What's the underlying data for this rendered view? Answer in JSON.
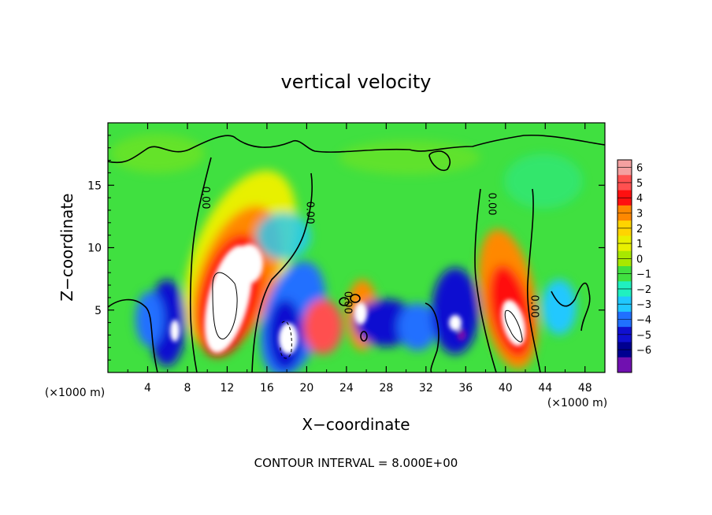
{
  "chart_data": {
    "type": "heatmap",
    "title": "vertical velocity",
    "xlabel": "X−coordinate",
    "ylabel": "Z−coordinate",
    "x_unit_left": "(×1000 m)",
    "x_unit_right": "(×1000 m)",
    "footer": "CONTOUR INTERVAL = 8.000E+00",
    "xlim": [
      0,
      50
    ],
    "ylim": [
      0,
      20
    ],
    "x_ticks": [
      4,
      8,
      12,
      16,
      20,
      24,
      28,
      32,
      36,
      40,
      44,
      48
    ],
    "x_tick_labels": [
      "4",
      "8",
      "12",
      "16",
      "20",
      "24",
      "28",
      "32",
      "36",
      "40",
      "44",
      "48"
    ],
    "y_ticks": [
      5,
      10,
      15
    ],
    "y_tick_labels": [
      "5",
      "10",
      "15"
    ],
    "colorbar": {
      "levels": [
        6,
        5,
        4,
        3,
        2,
        1,
        0,
        -1,
        -2,
        -3,
        -4,
        -5,
        -6
      ],
      "labels": [
        "6",
        "5",
        "4",
        "3",
        "2",
        "1",
        "0",
        "−1",
        "−2",
        "−3",
        "−4",
        "−5",
        "−6"
      ],
      "colors": [
        "#f4a0a0",
        "#ff5050",
        "#ff1010",
        "#ff8800",
        "#ffd400",
        "#e8f000",
        "#a8e800",
        "#40e040",
        "#20f0c0",
        "#20c8ff",
        "#2070ff",
        "#1010d0",
        "#000090",
        "#7010b0"
      ]
    },
    "contour_labels": [
      {
        "text": "0.00",
        "x": 9.5,
        "z": 14.0,
        "angle": 90
      },
      {
        "text": "0.00",
        "x": 20.0,
        "z": 12.8,
        "angle": 90
      },
      {
        "text": "0.00",
        "x": 38.3,
        "z": 13.5,
        "angle": 90
      },
      {
        "text": "0.00",
        "x": 42.6,
        "z": 5.3,
        "angle": 90
      },
      {
        "text": "0.00",
        "x": 23.8,
        "z": 5.6,
        "angle": 90
      }
    ]
  }
}
